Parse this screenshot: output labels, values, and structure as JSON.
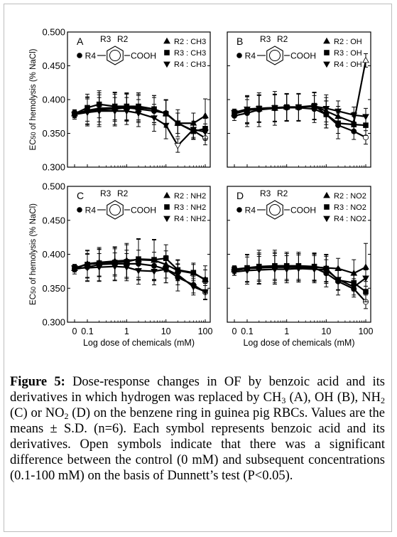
{
  "figure": {
    "y_axis_label_html": "EC<tspan font-size='9' dy='0'>50</tspan> of hemolysis (% NaCl)",
    "x_axis_label": "Log dose of chemicals (mM)",
    "x_tick_labels": [
      "0",
      "0.1",
      "1",
      "10",
      "100"
    ],
    "y_tick_labels": [
      "0.300",
      "0.350",
      "0.400",
      "0.450",
      "0.500"
    ]
  },
  "caption": {
    "label": "Figure 5:",
    "text_1": " Dose-response changes in OF by benzoic acid and its derivatives in which hydrogen was replaced by CH",
    "sub_1": "3",
    "text_2": " (A), OH (B), NH",
    "sub_2": "2",
    "text_3": " (C) or NO",
    "sub_3": "2",
    "text_4": " (D) on the benzene ring in guinea pig RBCs. Values are the means ± S.D. (n=6). Each symbol represents benzoic acid and its derivatives. Open symbols indicate that there was a significant difference between the control (0 mM) and subsequent concentrations (0.1-100 mM) on the basis of Dunnett’s test (P<0.05)."
  },
  "chart_data": [
    {
      "panel": "A",
      "type": "line",
      "x": [
        0,
        0.1,
        0.2,
        0.5,
        1,
        2,
        5,
        10,
        20,
        50,
        100
      ],
      "ylim": [
        0.3,
        0.5
      ],
      "structure": {
        "r3": "R3",
        "r2": "R2",
        "r4": "R4",
        "group": "COOH"
      },
      "series": [
        {
          "name": "benzoic acid",
          "marker": "circle",
          "values": [
            0.378,
            0.383,
            0.385,
            0.386,
            0.388,
            0.386,
            0.383,
            0.38,
            0.365,
            0.354,
            0.343
          ],
          "err": [
            0.007,
            0.02,
            0.025,
            0.025,
            0.02,
            0.02,
            0.02,
            0.02,
            0.02,
            0.012,
            0.01
          ],
          "open": [
            false,
            false,
            false,
            false,
            false,
            false,
            false,
            false,
            false,
            false,
            true
          ]
        },
        {
          "name": "R2 : CH3",
          "marker": "triangle-up",
          "values": [
            0.379,
            0.384,
            0.387,
            0.388,
            0.389,
            0.388,
            0.386,
            0.379,
            0.365,
            0.365,
            0.376
          ],
          "err": [
            0.005,
            0.02,
            0.02,
            0.02,
            0.02,
            0.02,
            0.02,
            0.02,
            0.015,
            0.015,
            0.025
          ],
          "open": [
            false,
            false,
            false,
            false,
            false,
            false,
            false,
            false,
            false,
            false,
            false
          ]
        },
        {
          "name": "R3 : CH3",
          "marker": "square",
          "values": [
            0.379,
            0.388,
            0.393,
            0.39,
            0.39,
            0.39,
            0.386,
            0.379,
            0.365,
            0.353,
            0.357
          ],
          "err": [
            0.005,
            0.02,
            0.02,
            0.02,
            0.02,
            0.02,
            0.02,
            0.02,
            0.015,
            0.012,
            0.015
          ],
          "open": [
            false,
            false,
            false,
            false,
            false,
            false,
            false,
            false,
            false,
            false,
            false
          ]
        },
        {
          "name": "R4 : CH3",
          "marker": "triangle-down",
          "values": [
            0.378,
            0.381,
            0.383,
            0.383,
            0.383,
            0.38,
            0.373,
            0.362,
            0.332,
            0.356,
            0.352
          ],
          "err": [
            0.005,
            0.02,
            0.02,
            0.02,
            0.02,
            0.02,
            0.02,
            0.02,
            0.01,
            0.012,
            0.012
          ],
          "open": [
            false,
            false,
            false,
            false,
            false,
            false,
            false,
            false,
            true,
            false,
            false
          ]
        }
      ]
    },
    {
      "panel": "B",
      "type": "line",
      "x": [
        0,
        0.1,
        0.2,
        0.5,
        1,
        2,
        5,
        10,
        20,
        50,
        100
      ],
      "ylim": [
        0.3,
        0.5
      ],
      "structure": {
        "r3": "R3",
        "r2": "R2",
        "r4": "R4",
        "group": "COOH"
      },
      "series": [
        {
          "name": "benzoic acid",
          "marker": "circle",
          "values": [
            0.376,
            0.38,
            0.385,
            0.387,
            0.388,
            0.388,
            0.386,
            0.378,
            0.362,
            0.353,
            0.344
          ],
          "err": [
            0.007,
            0.02,
            0.025,
            0.025,
            0.02,
            0.02,
            0.02,
            0.02,
            0.02,
            0.012,
            0.01
          ],
          "open": [
            false,
            false,
            false,
            false,
            false,
            false,
            false,
            false,
            false,
            false,
            true
          ]
        },
        {
          "name": "R2 : OH",
          "marker": "triangle-up",
          "values": [
            0.379,
            0.384,
            0.386,
            0.387,
            0.389,
            0.389,
            0.39,
            0.383,
            0.375,
            0.366,
            0.458
          ],
          "err": [
            0.005,
            0.02,
            0.02,
            0.02,
            0.02,
            0.02,
            0.02,
            0.02,
            0.015,
            0.015,
            0.01
          ],
          "open": [
            false,
            false,
            false,
            false,
            false,
            false,
            false,
            false,
            false,
            false,
            true
          ]
        },
        {
          "name": "R3 : OH",
          "marker": "square",
          "values": [
            0.38,
            0.385,
            0.387,
            0.388,
            0.389,
            0.389,
            0.391,
            0.378,
            0.365,
            0.363,
            0.362
          ],
          "err": [
            0.005,
            0.02,
            0.02,
            0.02,
            0.02,
            0.02,
            0.02,
            0.02,
            0.015,
            0.012,
            0.015
          ],
          "open": [
            false,
            false,
            false,
            false,
            false,
            false,
            false,
            false,
            false,
            false,
            false
          ]
        },
        {
          "name": "R4 : OH",
          "marker": "triangle-down",
          "values": [
            0.381,
            0.386,
            0.387,
            0.388,
            0.388,
            0.389,
            0.39,
            0.387,
            0.383,
            0.377,
            0.375
          ],
          "err": [
            0.005,
            0.02,
            0.02,
            0.02,
            0.02,
            0.02,
            0.02,
            0.02,
            0.015,
            0.012,
            0.012
          ],
          "open": [
            false,
            false,
            false,
            false,
            false,
            false,
            false,
            false,
            false,
            false,
            false
          ]
        }
      ]
    },
    {
      "panel": "C",
      "type": "line",
      "x": [
        0,
        0.1,
        0.2,
        0.5,
        1,
        2,
        5,
        10,
        20,
        50,
        100
      ],
      "ylim": [
        0.3,
        0.5
      ],
      "structure": {
        "r3": "R3",
        "r2": "R2",
        "r4": "R4",
        "group": "COOH"
      },
      "series": [
        {
          "name": "benzoic acid",
          "marker": "circle",
          "values": [
            0.378,
            0.381,
            0.385,
            0.386,
            0.386,
            0.386,
            0.383,
            0.378,
            0.366,
            0.355,
            0.344
          ],
          "err": [
            0.007,
            0.02,
            0.025,
            0.025,
            0.02,
            0.02,
            0.02,
            0.02,
            0.02,
            0.012,
            0.01
          ],
          "open": [
            false,
            false,
            false,
            false,
            false,
            false,
            false,
            false,
            false,
            false,
            true
          ]
        },
        {
          "name": "R2 : NH2",
          "marker": "triangle-up",
          "values": [
            0.379,
            0.386,
            0.388,
            0.39,
            0.391,
            0.392,
            0.391,
            0.385,
            0.376,
            0.372,
            0.363
          ],
          "err": [
            0.005,
            0.02,
            0.02,
            0.02,
            0.025,
            0.03,
            0.03,
            0.02,
            0.015,
            0.015,
            0.02
          ],
          "open": [
            false,
            false,
            false,
            false,
            false,
            false,
            false,
            false,
            false,
            false,
            false
          ]
        },
        {
          "name": "R3 : NH2",
          "marker": "square",
          "values": [
            0.38,
            0.385,
            0.387,
            0.388,
            0.389,
            0.393,
            0.392,
            0.394,
            0.377,
            0.373,
            0.362
          ],
          "err": [
            0.005,
            0.02,
            0.02,
            0.02,
            0.025,
            0.03,
            0.03,
            0.02,
            0.015,
            0.012,
            0.015
          ],
          "open": [
            false,
            false,
            false,
            false,
            false,
            false,
            false,
            false,
            false,
            false,
            false
          ]
        },
        {
          "name": "R4 : NH2",
          "marker": "triangle-down",
          "values": [
            0.38,
            0.38,
            0.381,
            0.382,
            0.381,
            0.376,
            0.375,
            0.378,
            0.37,
            0.352,
            0.345
          ],
          "err": [
            0.005,
            0.02,
            0.02,
            0.02,
            0.02,
            0.02,
            0.02,
            0.02,
            0.015,
            0.012,
            0.012
          ],
          "open": [
            false,
            false,
            false,
            false,
            false,
            false,
            false,
            false,
            false,
            false,
            false
          ]
        }
      ]
    },
    {
      "panel": "D",
      "type": "line",
      "x": [
        0,
        0.1,
        0.2,
        0.5,
        1,
        2,
        5,
        10,
        20,
        50,
        100
      ],
      "ylim": [
        0.3,
        0.5
      ],
      "structure": {
        "r3": "R3",
        "r2": "R2",
        "r4": "R4",
        "group": "COOH"
      },
      "series": [
        {
          "name": "benzoic acid",
          "marker": "circle",
          "values": [
            0.376,
            0.379,
            0.381,
            0.381,
            0.381,
            0.381,
            0.38,
            0.372,
            0.36,
            0.349,
            0.33
          ],
          "err": [
            0.007,
            0.02,
            0.025,
            0.025,
            0.02,
            0.02,
            0.02,
            0.02,
            0.02,
            0.012,
            0.01
          ],
          "open": [
            false,
            false,
            false,
            false,
            false,
            false,
            false,
            false,
            false,
            false,
            true
          ]
        },
        {
          "name": "R2 : NO2",
          "marker": "triangle-up",
          "values": [
            0.377,
            0.379,
            0.38,
            0.381,
            0.381,
            0.381,
            0.381,
            0.38,
            0.379,
            0.372,
            0.381
          ],
          "err": [
            0.005,
            0.02,
            0.02,
            0.02,
            0.02,
            0.02,
            0.02,
            0.02,
            0.015,
            0.02,
            0.035
          ],
          "open": [
            false,
            false,
            false,
            false,
            false,
            false,
            false,
            false,
            false,
            false,
            false
          ]
        },
        {
          "name": "R3 : NO2",
          "marker": "square",
          "values": [
            0.378,
            0.38,
            0.382,
            0.383,
            0.383,
            0.383,
            0.382,
            0.379,
            0.362,
            0.358,
            0.345
          ],
          "err": [
            0.005,
            0.02,
            0.02,
            0.02,
            0.02,
            0.02,
            0.02,
            0.02,
            0.015,
            0.012,
            0.015
          ],
          "open": [
            false,
            false,
            false,
            false,
            false,
            false,
            false,
            false,
            false,
            false,
            false
          ]
        },
        {
          "name": "R4 : NO2",
          "marker": "triangle-down",
          "values": [
            0.374,
            0.376,
            0.377,
            0.378,
            0.378,
            0.379,
            0.378,
            0.377,
            0.363,
            0.352,
            0.365
          ],
          "err": [
            0.005,
            0.02,
            0.02,
            0.02,
            0.02,
            0.02,
            0.02,
            0.02,
            0.015,
            0.012,
            0.012
          ],
          "open": [
            false,
            false,
            false,
            false,
            false,
            false,
            false,
            false,
            false,
            false,
            false
          ]
        }
      ]
    }
  ]
}
